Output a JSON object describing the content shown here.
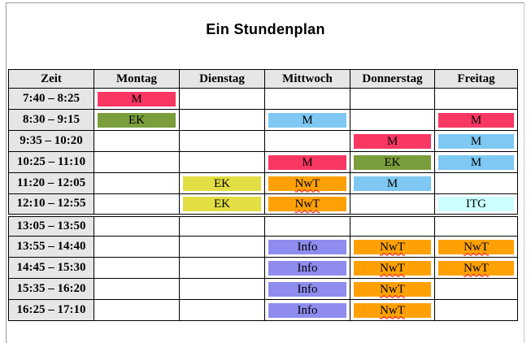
{
  "title": "Ein Stundenplan",
  "colors": {
    "pink": "#f93763",
    "green": "#7a9e3c",
    "yellow": "#e2df44",
    "blue": "#7ec8f3",
    "orange": "#ffa105",
    "purple": "#8e8cee",
    "cyan": "#ccffff",
    "header_bg": "#e6e6e6"
  },
  "table": {
    "columns": [
      "Zeit",
      "Montag",
      "Dienstag",
      "Mittwoch",
      "Donnerstag",
      "Freitag"
    ],
    "rows": [
      {
        "time": "7:40 – 8:25",
        "break_before": false,
        "cells": [
          {
            "subject": "M",
            "color": "pink",
            "misspelled": false
          },
          null,
          null,
          null,
          null
        ]
      },
      {
        "time": "8:30 – 9:15",
        "break_before": false,
        "cells": [
          {
            "subject": "EK",
            "color": "green",
            "misspelled": false
          },
          null,
          {
            "subject": "M",
            "color": "blue",
            "misspelled": false
          },
          null,
          {
            "subject": "M",
            "color": "pink",
            "misspelled": false
          }
        ]
      },
      {
        "time": "9:35 – 10:20",
        "break_before": false,
        "cells": [
          null,
          null,
          null,
          {
            "subject": "M",
            "color": "pink",
            "misspelled": false
          },
          {
            "subject": "M",
            "color": "blue",
            "misspelled": false
          }
        ]
      },
      {
        "time": "10:25 – 11:10",
        "break_before": false,
        "cells": [
          null,
          null,
          {
            "subject": "M",
            "color": "pink",
            "misspelled": false
          },
          {
            "subject": "EK",
            "color": "green",
            "misspelled": false
          },
          {
            "subject": "M",
            "color": "blue",
            "misspelled": false
          }
        ]
      },
      {
        "time": "11:20 – 12:05",
        "break_before": false,
        "cells": [
          null,
          {
            "subject": "EK",
            "color": "yellow",
            "misspelled": false
          },
          {
            "subject": "NwT",
            "color": "orange",
            "misspelled": true
          },
          {
            "subject": "M",
            "color": "blue",
            "misspelled": false
          },
          null
        ]
      },
      {
        "time": "12:10 – 12:55",
        "break_before": false,
        "cells": [
          null,
          {
            "subject": "EK",
            "color": "yellow",
            "misspelled": false
          },
          {
            "subject": "NwT",
            "color": "orange",
            "misspelled": true
          },
          null,
          {
            "subject": "ITG",
            "color": "cyan",
            "misspelled": false
          }
        ]
      },
      {
        "time": "13:05 – 13:50",
        "break_before": true,
        "cells": [
          null,
          null,
          null,
          null,
          null
        ]
      },
      {
        "time": "13:55 – 14:40",
        "break_before": false,
        "cells": [
          null,
          null,
          {
            "subject": "Info",
            "color": "purple",
            "misspelled": false
          },
          {
            "subject": "NwT",
            "color": "orange",
            "misspelled": true
          },
          {
            "subject": "NwT",
            "color": "orange",
            "misspelled": true
          }
        ]
      },
      {
        "time": "14:45 – 15:30",
        "break_before": false,
        "cells": [
          null,
          null,
          {
            "subject": "Info",
            "color": "purple",
            "misspelled": false
          },
          {
            "subject": "NwT",
            "color": "orange",
            "misspelled": true
          },
          {
            "subject": "NwT",
            "color": "orange",
            "misspelled": true
          }
        ]
      },
      {
        "time": "15:35 – 16:20",
        "break_before": false,
        "cells": [
          null,
          null,
          {
            "subject": "Info",
            "color": "purple",
            "misspelled": false
          },
          {
            "subject": "NwT",
            "color": "orange",
            "misspelled": true
          },
          null
        ]
      },
      {
        "time": "16:25 – 17:10",
        "break_before": false,
        "cells": [
          null,
          null,
          {
            "subject": "Info",
            "color": "purple",
            "misspelled": false
          },
          {
            "subject": "NwT",
            "color": "orange",
            "misspelled": true
          },
          null
        ]
      }
    ]
  }
}
